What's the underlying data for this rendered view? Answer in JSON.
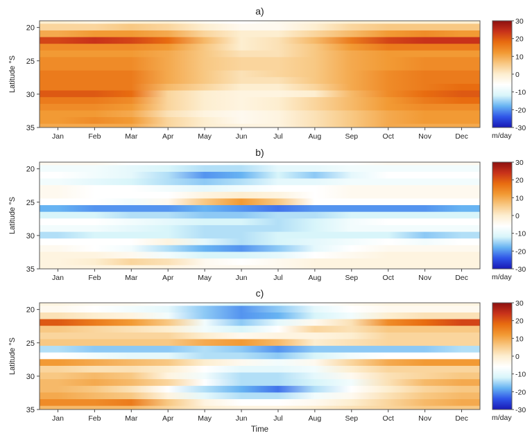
{
  "chart_data": {
    "type": "heatmap",
    "panels": [
      {
        "label": "a)",
        "ylabel": "Latitude °S",
        "yticks": [
          20,
          25,
          30,
          35
        ],
        "ylim": [
          19,
          35
        ],
        "xlabel": "",
        "months": [
          "Jan",
          "Feb",
          "Mar",
          "Apr",
          "May",
          "Jun",
          "Jul",
          "Aug",
          "Sep",
          "Oct",
          "Nov",
          "Dec"
        ],
        "latitudes": [
          19,
          20,
          21,
          22,
          23,
          24,
          25,
          26,
          27,
          28,
          29,
          30,
          31,
          32,
          33,
          34,
          35
        ],
        "values": [
          [
            0,
            -2,
            0,
            0,
            -4,
            -6,
            -4,
            -2,
            0,
            0,
            0,
            0
          ],
          [
            4,
            4,
            6,
            4,
            0,
            -4,
            -4,
            0,
            4,
            6,
            6,
            6
          ],
          [
            10,
            12,
            12,
            10,
            4,
            0,
            0,
            4,
            8,
            12,
            14,
            12
          ],
          [
            22,
            24,
            22,
            18,
            8,
            0,
            2,
            8,
            16,
            22,
            24,
            24
          ],
          [
            14,
            14,
            14,
            12,
            6,
            0,
            2,
            6,
            12,
            16,
            16,
            16
          ],
          [
            12,
            12,
            12,
            10,
            6,
            2,
            2,
            6,
            10,
            12,
            12,
            12
          ],
          [
            14,
            14,
            14,
            10,
            6,
            4,
            4,
            6,
            10,
            12,
            14,
            14
          ],
          [
            14,
            14,
            14,
            10,
            6,
            4,
            4,
            6,
            10,
            12,
            14,
            14
          ],
          [
            16,
            16,
            16,
            10,
            6,
            2,
            4,
            6,
            10,
            14,
            16,
            16
          ],
          [
            16,
            16,
            16,
            10,
            6,
            2,
            2,
            6,
            10,
            14,
            16,
            16
          ],
          [
            16,
            16,
            16,
            8,
            4,
            0,
            0,
            4,
            10,
            14,
            16,
            18
          ],
          [
            20,
            20,
            18,
            4,
            0,
            -2,
            -2,
            0,
            8,
            14,
            18,
            20
          ],
          [
            16,
            16,
            14,
            4,
            0,
            -2,
            0,
            4,
            8,
            12,
            16,
            18
          ],
          [
            14,
            14,
            12,
            4,
            0,
            -2,
            0,
            4,
            8,
            12,
            14,
            14
          ],
          [
            12,
            12,
            10,
            2,
            -2,
            -4,
            -2,
            2,
            6,
            10,
            12,
            12
          ],
          [
            12,
            14,
            12,
            4,
            0,
            -4,
            -2,
            2,
            6,
            10,
            12,
            12
          ],
          [
            10,
            10,
            10,
            4,
            0,
            -2,
            -2,
            2,
            6,
            10,
            10,
            10
          ]
        ]
      },
      {
        "label": "b)",
        "ylabel": "Latitude °S",
        "yticks": [
          20,
          25,
          30,
          35
        ],
        "ylim": [
          19,
          35
        ],
        "xlabel": "",
        "months": [
          "Jan",
          "Feb",
          "Mar",
          "Apr",
          "May",
          "Jun",
          "Jul",
          "Aug",
          "Sep",
          "Oct",
          "Nov",
          "Dec"
        ],
        "latitudes": [
          19,
          20,
          21,
          22,
          23,
          24,
          25,
          26,
          27,
          28,
          29,
          30,
          31,
          32,
          33,
          34,
          35
        ],
        "values": [
          [
            -4,
            -4,
            -6,
            -6,
            -6,
            -8,
            -6,
            -6,
            -6,
            -4,
            -4,
            -4
          ],
          [
            -8,
            -8,
            -10,
            -12,
            -14,
            -14,
            -10,
            -10,
            -8,
            -8,
            -8,
            -8
          ],
          [
            -6,
            -8,
            -10,
            -14,
            -20,
            -18,
            -12,
            -16,
            -10,
            -6,
            -6,
            -6
          ],
          [
            -8,
            -10,
            -12,
            -14,
            -16,
            -14,
            -10,
            -10,
            -8,
            -8,
            -8,
            -8
          ],
          [
            -4,
            -6,
            -6,
            -8,
            -10,
            -8,
            -6,
            -6,
            -4,
            -4,
            -4,
            -4
          ],
          [
            -4,
            -6,
            -6,
            -6,
            -2,
            0,
            -2,
            -6,
            -4,
            -4,
            -4,
            -4
          ],
          [
            -6,
            -6,
            -8,
            -4,
            6,
            12,
            6,
            -6,
            -6,
            -6,
            -6,
            -6
          ],
          [
            -18,
            -20,
            -20,
            -20,
            -18,
            -20,
            -22,
            -20,
            -20,
            -20,
            -20,
            -18
          ],
          [
            -12,
            -12,
            -14,
            -14,
            -16,
            -16,
            -14,
            -14,
            -12,
            -12,
            -12,
            -12
          ],
          [
            -6,
            -6,
            -8,
            -10,
            -12,
            -12,
            -14,
            -12,
            -8,
            -6,
            -6,
            -6
          ],
          [
            -8,
            -8,
            -10,
            -12,
            -14,
            -14,
            -14,
            -12,
            -8,
            -8,
            -8,
            -8
          ],
          [
            -14,
            -12,
            -12,
            -12,
            -14,
            -14,
            -12,
            -12,
            -12,
            -12,
            -16,
            -14
          ],
          [
            -6,
            -6,
            -6,
            -2,
            -10,
            -14,
            -12,
            -10,
            -8,
            -6,
            -8,
            -6
          ],
          [
            -4,
            -6,
            -8,
            -14,
            -18,
            -20,
            -16,
            -10,
            -6,
            -4,
            -4,
            -4
          ],
          [
            -2,
            -2,
            -4,
            -8,
            -12,
            -12,
            -10,
            -6,
            -4,
            -2,
            -2,
            -2
          ],
          [
            -2,
            0,
            4,
            2,
            -4,
            -6,
            -4,
            -2,
            -2,
            -2,
            -2,
            -2
          ],
          [
            -2,
            -2,
            -2,
            -2,
            -4,
            -4,
            -4,
            -2,
            -2,
            -2,
            -2,
            -2
          ]
        ]
      },
      {
        "label": "c)",
        "ylabel": "Latitude °S",
        "yticks": [
          20,
          25,
          30,
          35
        ],
        "ylim": [
          19,
          35
        ],
        "xlabel": "Time",
        "months": [
          "Jan",
          "Feb",
          "Mar",
          "Apr",
          "May",
          "Jun",
          "Jul",
          "Aug",
          "Sep",
          "Oct",
          "Nov",
          "Dec"
        ],
        "latitudes": [
          19,
          20,
          21,
          22,
          23,
          24,
          25,
          26,
          27,
          28,
          29,
          30,
          31,
          32,
          33,
          34,
          35
        ],
        "values": [
          [
            -2,
            -4,
            -4,
            -6,
            -8,
            -12,
            -10,
            -6,
            -4,
            -2,
            -2,
            -2
          ],
          [
            -4,
            -6,
            -8,
            -10,
            -16,
            -20,
            -16,
            -10,
            -6,
            -4,
            -4,
            -4
          ],
          [
            2,
            0,
            -2,
            -8,
            -16,
            -20,
            -18,
            -12,
            -8,
            0,
            2,
            2
          ],
          [
            20,
            16,
            12,
            6,
            -8,
            -16,
            -10,
            -4,
            2,
            14,
            18,
            22
          ],
          [
            6,
            4,
            2,
            0,
            -8,
            -12,
            -6,
            4,
            2,
            6,
            6,
            6
          ],
          [
            4,
            4,
            4,
            4,
            0,
            -4,
            -2,
            -2,
            0,
            4,
            4,
            4
          ],
          [
            6,
            6,
            6,
            6,
            10,
            12,
            8,
            0,
            2,
            4,
            4,
            4
          ],
          [
            -14,
            -16,
            -16,
            -16,
            -14,
            -16,
            -20,
            -16,
            -16,
            -16,
            -16,
            -14
          ],
          [
            -6,
            -8,
            -10,
            -10,
            -14,
            -14,
            -16,
            -12,
            -8,
            -6,
            -6,
            -6
          ],
          [
            12,
            10,
            8,
            6,
            0,
            -4,
            -8,
            -4,
            4,
            10,
            12,
            12
          ],
          [
            4,
            2,
            2,
            0,
            -6,
            -10,
            -10,
            -8,
            0,
            4,
            4,
            4
          ],
          [
            6,
            8,
            6,
            -2,
            -8,
            -14,
            -14,
            -10,
            -4,
            2,
            4,
            6
          ],
          [
            8,
            10,
            8,
            4,
            -6,
            -14,
            -14,
            -12,
            -8,
            2,
            8,
            10
          ],
          [
            8,
            6,
            2,
            -6,
            -14,
            -18,
            -22,
            -14,
            -6,
            0,
            4,
            6
          ],
          [
            10,
            8,
            6,
            -2,
            -10,
            -14,
            -14,
            -8,
            -4,
            2,
            6,
            8
          ],
          [
            14,
            14,
            16,
            6,
            -2,
            -6,
            -6,
            -4,
            0,
            4,
            8,
            10
          ],
          [
            8,
            8,
            8,
            4,
            0,
            -2,
            -2,
            0,
            2,
            4,
            6,
            6
          ]
        ]
      }
    ],
    "colorbar": {
      "unit": "m/day",
      "ticks": [
        30,
        20,
        10,
        0,
        -10,
        -20,
        -30
      ],
      "range": [
        -30,
        30
      ],
      "colors": [
        "#1919b4",
        "#2f55e8",
        "#67b3f2",
        "#d8f5fa",
        "#ffffff",
        "#fdeed0",
        "#f8c883",
        "#f29a34",
        "#e86c10",
        "#c8321a",
        "#8c1010"
      ]
    },
    "grid": false,
    "colorbar_placement": "right of each panel"
  }
}
